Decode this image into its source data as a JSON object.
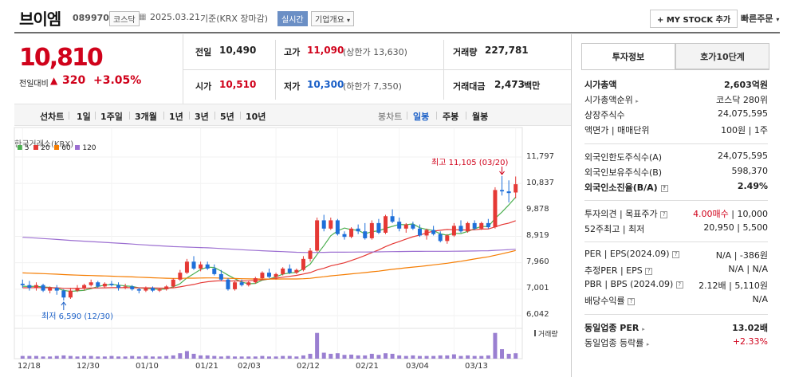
{
  "header": {
    "name": "브이엠",
    "code": "089970",
    "market": "코스닥",
    "date": "2025.03.21",
    "basis": "기준(KRX 장마감)",
    "realtime_label": "실시간",
    "company_info_label": "기업개요",
    "mystock_label": "+ MY STOCK 추가",
    "quick_order_label": "빠른주문"
  },
  "price": {
    "current": "10,810",
    "vs_label": "전일대비",
    "change": "320",
    "change_pct": "+3.05%"
  },
  "quote": {
    "prev_label": "전일",
    "prev": "10,490",
    "high_label": "고가",
    "high": "11,090",
    "upper_limit": "(상한가 13,630)",
    "volume_label": "거래량",
    "volume": "227,781",
    "open_label": "시가",
    "open": "10,510",
    "low_label": "저가",
    "low": "10,300",
    "lower_limit": "(하한가 7,350)",
    "amount_label": "거래대금",
    "amount": "2,473",
    "amount_unit": "백만"
  },
  "periods": {
    "line_label": "선차트",
    "items": [
      "1일",
      "1주일",
      "3개월",
      "1년",
      "3년",
      "5년",
      "10년"
    ],
    "candle_label": "봉차트",
    "candle_items": [
      "일봉",
      "주봉",
      "월봉"
    ]
  },
  "chart": {
    "exchange_label": "한국거래소(KRX)",
    "legend": [
      {
        "name": "5",
        "color": "#4caf50"
      },
      {
        "name": "20",
        "color": "#e53935"
      },
      {
        "name": "60",
        "color": "#f57c00"
      },
      {
        "name": "120",
        "color": "#9c6fd1"
      }
    ],
    "max_label": "최고 11,105 (03/20)",
    "min_label": "최저 6,590 (12/30)",
    "volume_label": "거래량",
    "y_ticks": [
      "11,797",
      "10,837",
      "9,878",
      "8,919",
      "7,960",
      "7,001",
      "6,042"
    ],
    "x_ticks": [
      "12/18",
      "12/30",
      "01/10",
      "01/21",
      "02/03",
      "02/12",
      "02/21",
      "03/04",
      "03/13"
    ]
  },
  "chart_data": {
    "type": "candlestick",
    "ylim": [
      6042,
      11797
    ],
    "ohlc": [
      [
        7200,
        7350,
        7050,
        7150
      ],
      [
        7150,
        7300,
        6950,
        7050
      ],
      [
        7050,
        7250,
        6950,
        7150
      ],
      [
        7150,
        7200,
        6900,
        6950
      ],
      [
        6950,
        7100,
        6850,
        7050
      ],
      [
        7050,
        7150,
        6800,
        6950
      ],
      [
        6950,
        7000,
        6590,
        6700
      ],
      [
        6700,
        7050,
        6650,
        6950
      ],
      [
        6950,
        7150,
        6900,
        7050
      ],
      [
        7050,
        7200,
        6950,
        7150
      ],
      [
        7150,
        7350,
        7100,
        7250
      ],
      [
        7250,
        7300,
        7050,
        7100
      ],
      [
        7100,
        7250,
        7050,
        7200
      ],
      [
        7200,
        7300,
        7100,
        7150
      ],
      [
        7150,
        7250,
        6950,
        7050
      ],
      [
        7050,
        7200,
        7000,
        7100
      ],
      [
        7100,
        7150,
        6950,
        7000
      ],
      [
        7000,
        7050,
        6850,
        6950
      ],
      [
        6950,
        7100,
        6900,
        7050
      ],
      [
        7050,
        7100,
        6900,
        6950
      ],
      [
        6950,
        7050,
        6900,
        7000
      ],
      [
        7000,
        7150,
        6950,
        7100
      ],
      [
        7100,
        7400,
        7050,
        7350
      ],
      [
        7350,
        7700,
        7300,
        7600
      ],
      [
        7600,
        8100,
        7550,
        8000
      ],
      [
        8000,
        8200,
        7700,
        7750
      ],
      [
        7750,
        8000,
        7650,
        7900
      ],
      [
        7900,
        8000,
        7700,
        7750
      ],
      [
        7750,
        7900,
        7500,
        7550
      ],
      [
        7550,
        7700,
        7300,
        7350
      ],
      [
        7350,
        7400,
        6950,
        7000
      ],
      [
        7000,
        7300,
        6950,
        7250
      ],
      [
        7250,
        7350,
        7100,
        7150
      ],
      [
        7150,
        7300,
        7100,
        7250
      ],
      [
        7250,
        7450,
        7200,
        7400
      ],
      [
        7400,
        7650,
        7350,
        7600
      ],
      [
        7600,
        7750,
        7400,
        7450
      ],
      [
        7450,
        7600,
        7350,
        7550
      ],
      [
        7550,
        7800,
        7500,
        7750
      ],
      [
        7750,
        7900,
        7550,
        7600
      ],
      [
        7600,
        7750,
        7550,
        7700
      ],
      [
        7700,
        8200,
        7650,
        8100
      ],
      [
        8100,
        8500,
        8000,
        8400
      ],
      [
        8400,
        9600,
        8350,
        9500
      ],
      [
        9500,
        9700,
        9100,
        9200
      ],
      [
        9200,
        9600,
        9150,
        9500
      ],
      [
        9500,
        9550,
        8950,
        9000
      ],
      [
        9000,
        9100,
        8800,
        8900
      ],
      [
        8900,
        9250,
        8850,
        9200
      ],
      [
        9200,
        9350,
        9000,
        9100
      ],
      [
        9100,
        9400,
        8800,
        8850
      ],
      [
        8850,
        9500,
        8800,
        9400
      ],
      [
        9400,
        9550,
        9000,
        9050
      ],
      [
        9050,
        9700,
        9000,
        9650
      ],
      [
        9650,
        9900,
        9400,
        9450
      ],
      [
        9450,
        9600,
        9100,
        9200
      ],
      [
        9200,
        9400,
        9050,
        9350
      ],
      [
        9350,
        9450,
        9150,
        9200
      ],
      [
        9200,
        9350,
        8900,
        8950
      ],
      [
        8950,
        9200,
        8800,
        9150
      ],
      [
        9150,
        9300,
        8950,
        9000
      ],
      [
        9000,
        9100,
        8700,
        8750
      ],
      [
        8750,
        9000,
        8650,
        8950
      ],
      [
        8950,
        9400,
        8900,
        9300
      ],
      [
        9300,
        9500,
        9050,
        9100
      ],
      [
        9100,
        9450,
        9050,
        9400
      ],
      [
        9400,
        9500,
        9150,
        9200
      ],
      [
        9200,
        9450,
        9150,
        9400
      ],
      [
        9400,
        9550,
        9200,
        9250
      ],
      [
        9250,
        10700,
        9200,
        10600
      ],
      [
        10600,
        11105,
        10400,
        10550
      ],
      [
        10550,
        10950,
        10150,
        10490
      ],
      [
        10510,
        11090,
        10300,
        10810
      ]
    ],
    "volume_rel": [
      0.1,
      0.1,
      0.1,
      0.08,
      0.08,
      0.1,
      0.12,
      0.1,
      0.08,
      0.1,
      0.1,
      0.08,
      0.08,
      0.1,
      0.08,
      0.08,
      0.1,
      0.08,
      0.1,
      0.08,
      0.08,
      0.1,
      0.12,
      0.2,
      0.28,
      0.18,
      0.12,
      0.12,
      0.1,
      0.08,
      0.1,
      0.08,
      0.08,
      0.08,
      0.08,
      0.1,
      0.08,
      0.08,
      0.1,
      0.1,
      0.08,
      0.12,
      0.18,
      0.95,
      0.22,
      0.18,
      0.2,
      0.14,
      0.15,
      0.12,
      0.12,
      0.18,
      0.14,
      0.2,
      0.18,
      0.12,
      0.1,
      0.12,
      0.1,
      0.1,
      0.1,
      0.12,
      0.12,
      0.16,
      0.1,
      0.12,
      0.1,
      0.1,
      0.12,
      0.95,
      0.35,
      0.18,
      0.2
    ],
    "ma5": "computed",
    "ma20": "computed",
    "ma60": "computed",
    "ma120": "computed"
  },
  "side": {
    "tab_info": "투자정보",
    "tab_orderbook": "호가10단계",
    "rows": [
      {
        "label": "시가총액",
        "value": "2,603억원"
      },
      {
        "label": "시가총액순위",
        "value": "코스닥 280위"
      },
      {
        "label": "상장주식수",
        "value": "24,075,595"
      },
      {
        "label": "액면가 | 매매단위",
        "value": "100원 | 1주"
      },
      {
        "label": "외국인한도주식수(A)",
        "value": "24,075,595"
      },
      {
        "label": "외국인보유주식수(B)",
        "value": "598,370"
      },
      {
        "label": "외국인소진율(B/A)",
        "value": "2.49%"
      },
      {
        "label": "투자의견 | 목표주가",
        "value_a": "4.00매수",
        "value_b": "| 10,000"
      },
      {
        "label": "52주최고 | 최저",
        "value": "20,950 | 5,500"
      },
      {
        "label": "PER | EPS(2024.09)",
        "value": "N/A | -386원"
      },
      {
        "label": "추정PER | EPS",
        "value": "N/A | N/A"
      },
      {
        "label": "PBR | BPS (2024.09)",
        "value": "2.12배 | 5,110원"
      },
      {
        "label": "배당수익률",
        "value": "N/A"
      },
      {
        "label": "동일업종 PER",
        "value": "13.02배"
      },
      {
        "label": "동일업종 등락률",
        "value": "+2.33%"
      }
    ]
  }
}
